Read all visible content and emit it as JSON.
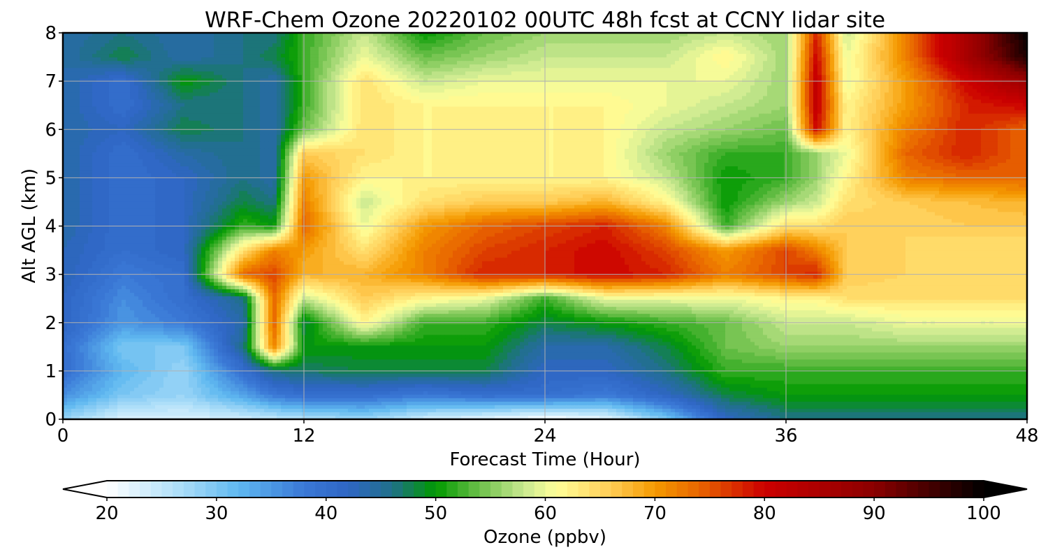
{
  "chart_data": {
    "type": "heatmap",
    "title": "WRF-Chem Ozone  20220102 00UTC 48h fcst at CCNY lidar site",
    "xlabel": "Forecast Time (Hour)",
    "ylabel": "Alt AGL (km)",
    "xlim": [
      0,
      48
    ],
    "ylim": [
      0,
      8
    ],
    "x_ticks": [
      "0",
      "12",
      "24",
      "36",
      "48"
    ],
    "y_ticks": [
      "0",
      "1",
      "2",
      "3",
      "4",
      "5",
      "6",
      "7",
      "8"
    ],
    "grid": true,
    "colorbar": {
      "label": "Ozone  (ppbv)",
      "range": [
        20,
        100
      ],
      "step": 1,
      "extend": "both",
      "ticks": [
        "20",
        "30",
        "40",
        "50",
        "60",
        "70",
        "80",
        "90",
        "100"
      ],
      "colors": [
        {
          "v": 20,
          "c": "#ffffff"
        },
        {
          "v": 27,
          "c": "#a8dcf8"
        },
        {
          "v": 32,
          "c": "#5fb8f0"
        },
        {
          "v": 38,
          "c": "#3a78d6"
        },
        {
          "v": 42,
          "c": "#2f66c4"
        },
        {
          "v": 46,
          "c": "#20708a"
        },
        {
          "v": 50,
          "c": "#009900"
        },
        {
          "v": 54,
          "c": "#6cc04a"
        },
        {
          "v": 58,
          "c": "#c8e890"
        },
        {
          "v": 61,
          "c": "#ffff99"
        },
        {
          "v": 66,
          "c": "#ffcc55"
        },
        {
          "v": 70,
          "c": "#f59a00"
        },
        {
          "v": 74,
          "c": "#e86500"
        },
        {
          "v": 80,
          "c": "#cc0000"
        },
        {
          "v": 90,
          "c": "#8b0000"
        },
        {
          "v": 100,
          "c": "#000000"
        }
      ]
    },
    "altitudes_km": [
      0,
      0.5,
      1,
      1.5,
      2,
      2.5,
      3,
      3.5,
      4,
      4.5,
      5,
      5.5,
      6,
      6.5,
      7,
      7.5,
      8
    ],
    "forecast_hours": [
      0,
      3,
      6,
      9,
      10.5,
      12,
      15,
      18,
      21,
      24,
      27,
      30,
      33,
      36,
      37.5,
      39,
      42,
      45,
      48
    ],
    "ozone_ppbv": [
      [
        28,
        23,
        23,
        24,
        25,
        26,
        28,
        24,
        22,
        20,
        22,
        30,
        42,
        46,
        46,
        46,
        46,
        46,
        46
      ],
      [
        36,
        30,
        28,
        34,
        38,
        40,
        40,
        38,
        40,
        40,
        38,
        42,
        48,
        50,
        50,
        50,
        50,
        50,
        50
      ],
      [
        40,
        32,
        28,
        40,
        46,
        47,
        48,
        48,
        48,
        42,
        42,
        46,
        52,
        52,
        52,
        52,
        52,
        52,
        52
      ],
      [
        40,
        30,
        30,
        46,
        72,
        50,
        50,
        50,
        50,
        44,
        44,
        48,
        54,
        56,
        56,
        56,
        56,
        56,
        56
      ],
      [
        42,
        35,
        38,
        44,
        74,
        48,
        62,
        52,
        52,
        48,
        50,
        52,
        54,
        58,
        58,
        58,
        60,
        60,
        60
      ],
      [
        42,
        36,
        40,
        46,
        74,
        58,
        66,
        62,
        60,
        52,
        60,
        60,
        60,
        62,
        62,
        64,
        64,
        64,
        64
      ],
      [
        43,
        38,
        40,
        74,
        76,
        68,
        68,
        72,
        78,
        78,
        80,
        78,
        72,
        76,
        78,
        66,
        65,
        64,
        64
      ],
      [
        43,
        40,
        42,
        64,
        72,
        70,
        64,
        72,
        76,
        78,
        80,
        76,
        70,
        76,
        72,
        66,
        65,
        64,
        64
      ],
      [
        44,
        40,
        42,
        52,
        50,
        74,
        60,
        70,
        74,
        76,
        78,
        72,
        52,
        64,
        64,
        66,
        65,
        66,
        66
      ],
      [
        44,
        40,
        42,
        48,
        46,
        72,
        58,
        64,
        66,
        66,
        68,
        62,
        50,
        56,
        58,
        64,
        66,
        67,
        68
      ],
      [
        44,
        40,
        42,
        46,
        44,
        70,
        62,
        62,
        62,
        62,
        62,
        58,
        50,
        52,
        56,
        62,
        72,
        74,
        74
      ],
      [
        44,
        40,
        44,
        46,
        44,
        66,
        64,
        62,
        62,
        62,
        62,
        56,
        52,
        52,
        56,
        60,
        74,
        78,
        74
      ],
      [
        44,
        42,
        48,
        46,
        44,
        54,
        64,
        62,
        62,
        62,
        62,
        58,
        56,
        54,
        80,
        62,
        72,
        78,
        74
      ],
      [
        44,
        40,
        46,
        46,
        44,
        52,
        64,
        62,
        62,
        62,
        62,
        60,
        58,
        56,
        82,
        62,
        70,
        78,
        80
      ],
      [
        44,
        40,
        50,
        46,
        44,
        52,
        64,
        58,
        60,
        60,
        60,
        60,
        60,
        56,
        82,
        60,
        70,
        80,
        88
      ],
      [
        44,
        48,
        44,
        46,
        48,
        52,
        60,
        54,
        56,
        58,
        58,
        58,
        62,
        56,
        80,
        60,
        72,
        86,
        98
      ],
      [
        44,
        46,
        44,
        46,
        46,
        52,
        58,
        50,
        54,
        56,
        56,
        56,
        58,
        56,
        78,
        58,
        72,
        86,
        100
      ]
    ]
  }
}
